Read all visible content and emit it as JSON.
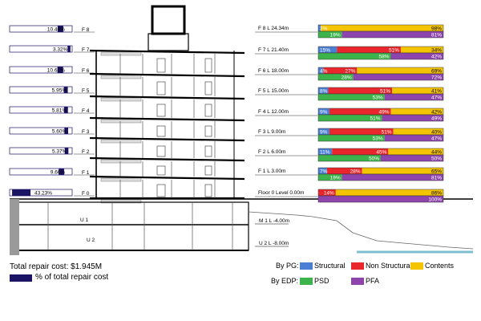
{
  "chart_data": {
    "type": "bar",
    "total_repair_cost_label": "Total repair cost: $1.945M",
    "pct_legend_label": "% of total repair cost",
    "pg_legend": {
      "title": "By PG:",
      "items": [
        {
          "name": "Structural",
          "color": "#4a7fd4"
        },
        {
          "name": "Non Structural",
          "color": "#e8262b"
        },
        {
          "name": "Contents",
          "color": "#f5c400"
        }
      ]
    },
    "edp_legend": {
      "title": "By EDP:",
      "items": [
        {
          "name": "PSD",
          "color": "#3cb44b"
        },
        {
          "name": "PFA",
          "color": "#8e44ad"
        }
      ]
    },
    "floor_share": [
      {
        "pct_label": "10.46%",
        "floor_label": "F 8",
        "value": 10.46
      },
      {
        "pct_label": "3.32%",
        "floor_label": "F 7",
        "value": 3.32
      },
      {
        "pct_label": "10.61%",
        "floor_label": "F 6",
        "value": 10.61
      },
      {
        "pct_label": "5.95%",
        "floor_label": "F 5",
        "value": 5.95
      },
      {
        "pct_label": "5.81%",
        "floor_label": "F 4",
        "value": 5.81
      },
      {
        "pct_label": "5.60%",
        "floor_label": "F 3",
        "value": 5.6
      },
      {
        "pct_label": "5.37%",
        "floor_label": "F 2",
        "value": 5.37
      },
      {
        "pct_label": "9.66%",
        "floor_label": "F 1",
        "value": 9.66
      },
      {
        "pct_label": "43.23%",
        "floor_label": "F 0",
        "value": 43.23
      }
    ],
    "breakdown": [
      {
        "level": "F 8 L 24.34m",
        "pg": [
          2,
          0,
          98
        ],
        "pg_labels": [
          "2%",
          "",
          "98%"
        ],
        "edp": [
          19,
          81
        ],
        "edp_labels": [
          "19%",
          "81%"
        ]
      },
      {
        "level": "F 7 L 21.40m",
        "pg": [
          15,
          51,
          34
        ],
        "pg_labels": [
          "15%",
          "51%",
          "34%"
        ],
        "edp": [
          58,
          42
        ],
        "edp_labels": [
          "58%",
          "42%"
        ]
      },
      {
        "level": "F 6 L 18.00m",
        "pg": [
          4,
          27,
          69
        ],
        "pg_labels": [
          "4%",
          "27%",
          "69%"
        ],
        "edp": [
          28,
          72
        ],
        "edp_labels": [
          "28%",
          "72%"
        ]
      },
      {
        "level": "F 5 L 15.00m",
        "pg": [
          8,
          51,
          41
        ],
        "pg_labels": [
          "8%",
          "51%",
          "41%"
        ],
        "edp": [
          53,
          47
        ],
        "edp_labels": [
          "53%",
          "47%"
        ]
      },
      {
        "level": "F 4 L 12.00m",
        "pg": [
          9,
          49,
          42
        ],
        "pg_labels": [
          "9%",
          "49%",
          "42%"
        ],
        "edp": [
          51,
          49
        ],
        "edp_labels": [
          "51%",
          "49%"
        ]
      },
      {
        "level": "F 3 L 9.00m",
        "pg": [
          9,
          51,
          40
        ],
        "pg_labels": [
          "9%",
          "51%",
          "40%"
        ],
        "edp": [
          53,
          47
        ],
        "edp_labels": [
          "53%",
          "47%"
        ]
      },
      {
        "level": "F 2 L 6.00m",
        "pg": [
          11,
          45,
          44
        ],
        "pg_labels": [
          "11%",
          "45%",
          "44%"
        ],
        "edp": [
          50,
          50
        ],
        "edp_labels": [
          "50%",
          "50%"
        ]
      },
      {
        "level": "F 1 L 3.00m",
        "pg": [
          7,
          28,
          65
        ],
        "pg_labels": [
          "7%",
          "28%",
          "65%"
        ],
        "edp": [
          19,
          81
        ],
        "edp_labels": [
          "19%",
          "81%"
        ]
      },
      {
        "level": "Floor 0 Level 0.00m",
        "pg": [
          0,
          14,
          86
        ],
        "pg_labels": [
          "",
          "14%",
          "86%"
        ],
        "edp": [
          0,
          100
        ],
        "edp_labels": [
          "",
          "100%"
        ]
      }
    ],
    "basement_labels": [
      "U 1",
      "U 2"
    ],
    "basement_levels": [
      "M 1 L -4.00m",
      "U 2 L -8.00m"
    ]
  }
}
